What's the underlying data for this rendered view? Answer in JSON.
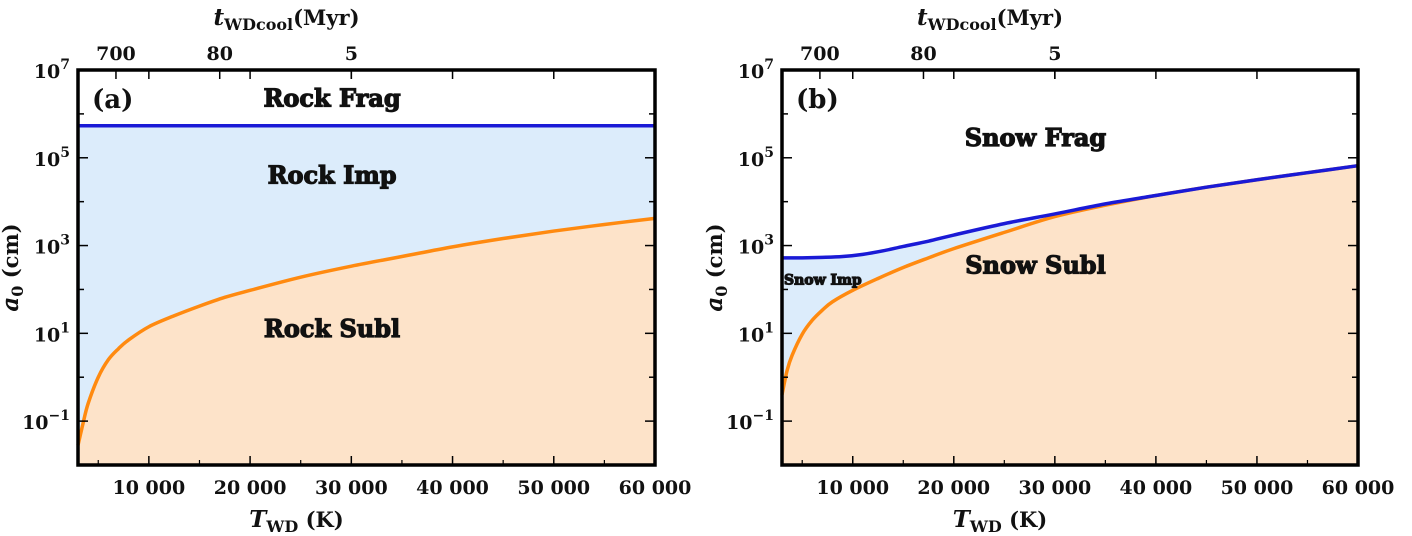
{
  "colors": {
    "impact_fill": "#dcecfb",
    "subl_fill": "#fde3c9",
    "frag_line": "#1a1ad6",
    "subl_line": "#ff8a10",
    "frame": "#000000"
  },
  "chart_data": [
    {
      "type": "area",
      "panel_label": "(a)",
      "xlabel": {
        "main": "T",
        "sub": "WD",
        "unit": " (K)"
      },
      "ylabel": {
        "main": "a",
        "sub": "0",
        "unit": " (cm)"
      },
      "top_xlabel": {
        "main": "t",
        "sub": "WDcool",
        "unit": "(Myr)"
      },
      "xlim": [
        3000,
        60000
      ],
      "ylim_log10": [
        -2,
        7
      ],
      "y_scale": "log",
      "x_ticks": [
        10000,
        20000,
        30000,
        40000,
        50000,
        60000
      ],
      "x_tick_labels": [
        "10 000",
        "20 000",
        "30 000",
        "40 000",
        "50 000",
        "60 000"
      ],
      "y_ticks_exp": [
        -1,
        1,
        3,
        5,
        7
      ],
      "top_ticks": [
        {
          "T": 6750,
          "label": "700"
        },
        {
          "T": 17000,
          "label": "80"
        },
        {
          "T": 30000,
          "label": "5"
        }
      ],
      "regions": [
        {
          "name": "Rock Frag",
          "color": "none"
        },
        {
          "name": "Rock Imp",
          "color": "#dcecfb"
        },
        {
          "name": "Rock Subl",
          "color": "#fde3c9"
        }
      ],
      "series": [
        {
          "name": "fragmentation boundary",
          "color": "#1a1ad6",
          "x": [
            3000,
            10000,
            20000,
            30000,
            40000,
            50000,
            60000
          ],
          "log10_y": [
            5.73,
            5.73,
            5.73,
            5.73,
            5.73,
            5.73,
            5.73
          ]
        },
        {
          "name": "sublimation boundary",
          "color": "#ff8a10",
          "x": [
            3000,
            3500,
            4000,
            5000,
            6000,
            7000,
            8000,
            10000,
            12500,
            15000,
            17500,
            20000,
            25000,
            30000,
            35000,
            40000,
            45000,
            50000,
            55000,
            60000
          ],
          "log10_y": [
            -1.55,
            -1.05,
            -0.6,
            0.0,
            0.4,
            0.65,
            0.85,
            1.15,
            1.4,
            1.62,
            1.82,
            1.98,
            2.28,
            2.53,
            2.75,
            2.97,
            3.16,
            3.33,
            3.48,
            3.62
          ]
        }
      ],
      "region_labels": [
        {
          "text": "Rock Frag",
          "x": 36000,
          "log10_y": 6.35
        },
        {
          "text": "Rock Imp",
          "x": 36000,
          "log10_y": 4.6
        },
        {
          "text": "Rock Subl",
          "x": 36000,
          "log10_y": 1.1
        }
      ]
    },
    {
      "type": "area",
      "panel_label": "(b)",
      "xlabel": {
        "main": "T",
        "sub": "WD",
        "unit": " (K)"
      },
      "ylabel": {
        "main": "a",
        "sub": "0",
        "unit": " (cm)"
      },
      "top_xlabel": {
        "main": "t",
        "sub": "WDcool",
        "unit": "(Myr)"
      },
      "xlim": [
        3000,
        60000
      ],
      "ylim_log10": [
        -2,
        7
      ],
      "y_scale": "log",
      "x_ticks": [
        10000,
        20000,
        30000,
        40000,
        50000,
        60000
      ],
      "x_tick_labels": [
        "10 000",
        "20 000",
        "30 000",
        "40 000",
        "50 000",
        "60 000"
      ],
      "y_ticks_exp": [
        -1,
        1,
        3,
        5,
        7
      ],
      "top_ticks": [
        {
          "T": 6750,
          "label": "700"
        },
        {
          "T": 17000,
          "label": "80"
        },
        {
          "T": 30000,
          "label": "5"
        }
      ],
      "regions": [
        {
          "name": "Snow Frag",
          "color": "none"
        },
        {
          "name": "Snow Imp",
          "color": "#dcecfb"
        },
        {
          "name": "Snow Subl",
          "color": "#fde3c9"
        }
      ],
      "series": [
        {
          "name": "fragmentation boundary",
          "color": "#1a1ad6",
          "x": [
            3000,
            5000,
            7000,
            9000,
            11000,
            13000,
            15000,
            17500,
            20000,
            25000,
            30000,
            35000,
            40000,
            45000,
            50000,
            55000,
            60000
          ],
          "log10_y": [
            2.72,
            2.72,
            2.73,
            2.75,
            2.8,
            2.88,
            2.98,
            3.1,
            3.24,
            3.5,
            3.72,
            3.95,
            4.14,
            4.33,
            4.5,
            4.66,
            4.82
          ]
        },
        {
          "name": "sublimation boundary",
          "color": "#ff8a10",
          "x": [
            3000,
            3500,
            4000,
            5000,
            6000,
            7000,
            8000,
            10000,
            12500,
            15000,
            17500,
            20000,
            25000,
            30000,
            35000,
            40000,
            45000,
            50000,
            55000,
            60000
          ],
          "log10_y": [
            -0.4,
            0.15,
            0.5,
            0.98,
            1.3,
            1.53,
            1.72,
            1.98,
            2.25,
            2.5,
            2.72,
            2.93,
            3.3,
            3.66,
            3.92,
            4.14,
            4.33,
            4.5,
            4.66,
            4.82
          ]
        }
      ],
      "region_labels": [
        {
          "text": "Snow Frag",
          "x": 36000,
          "log10_y": 5.45
        },
        {
          "text": "Snow Imp",
          "x": 6500,
          "log10_y": 2.3
        },
        {
          "text": "Snow Subl",
          "x": 36000,
          "log10_y": 2.55
        }
      ]
    }
  ]
}
